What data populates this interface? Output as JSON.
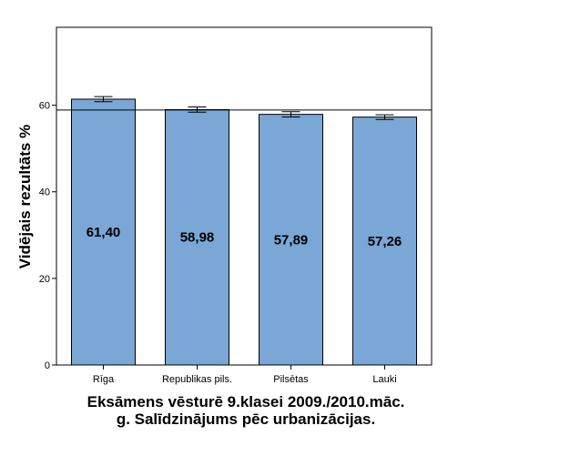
{
  "chart_data": {
    "type": "bar",
    "title": "Eksāmens vēsturē 9.klasei 2009./2010.māc.\ng. Salīdzinājums pēc urbanizācijas.",
    "xlabel": "",
    "ylabel": "Vidējais rezultāts %",
    "ylim": [
      0,
      78
    ],
    "yticks": [
      0,
      20,
      40,
      60
    ],
    "categories": [
      "Rīga",
      "Republikas pils.",
      "Pilsētas",
      "Lauki"
    ],
    "values": [
      61.4,
      58.98,
      57.89,
      57.26
    ],
    "value_labels": [
      "61,40",
      "58,98",
      "57,89",
      "57,26"
    ],
    "error_bars": [
      [
        60.8,
        62.0
      ],
      [
        58.4,
        59.6
      ],
      [
        57.3,
        58.5
      ],
      [
        56.7,
        57.8
      ]
    ],
    "reference_line": 58.9,
    "bar_color": "#7aa7d6",
    "grid": false,
    "legend": "none"
  }
}
